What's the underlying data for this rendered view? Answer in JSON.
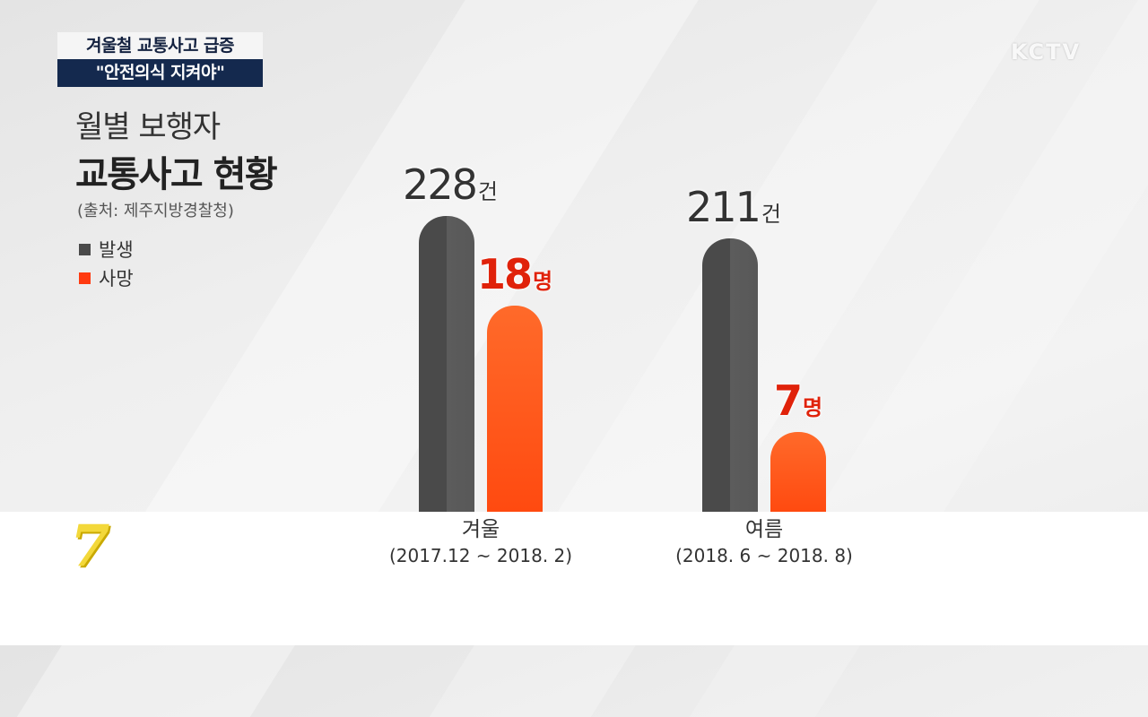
{
  "headline": {
    "line1": "겨울철 교통사고 급증",
    "line2": "\"안전의식 지켜야\""
  },
  "logo": "KCTV",
  "title": {
    "line1": "월별 보행자",
    "line2": "교통사고 현황"
  },
  "source": "(출처: 제주지방경찰청)",
  "program_mark": "7",
  "colors": {
    "incident": "#4a4a4a",
    "death": "#ff4a10",
    "headline_bg": "#14294e"
  },
  "chart_data": {
    "type": "bar",
    "categories": [
      {
        "name": "겨울",
        "range": "(2017.12 ~ 2018. 2)"
      },
      {
        "name": "여름",
        "range": "(2018. 6 ~ 2018. 8)"
      }
    ],
    "series": [
      {
        "name": "발생",
        "values": [
          228,
          211
        ],
        "unit": "건"
      },
      {
        "name": "사망",
        "values": [
          18,
          7
        ],
        "unit": "명"
      }
    ]
  }
}
